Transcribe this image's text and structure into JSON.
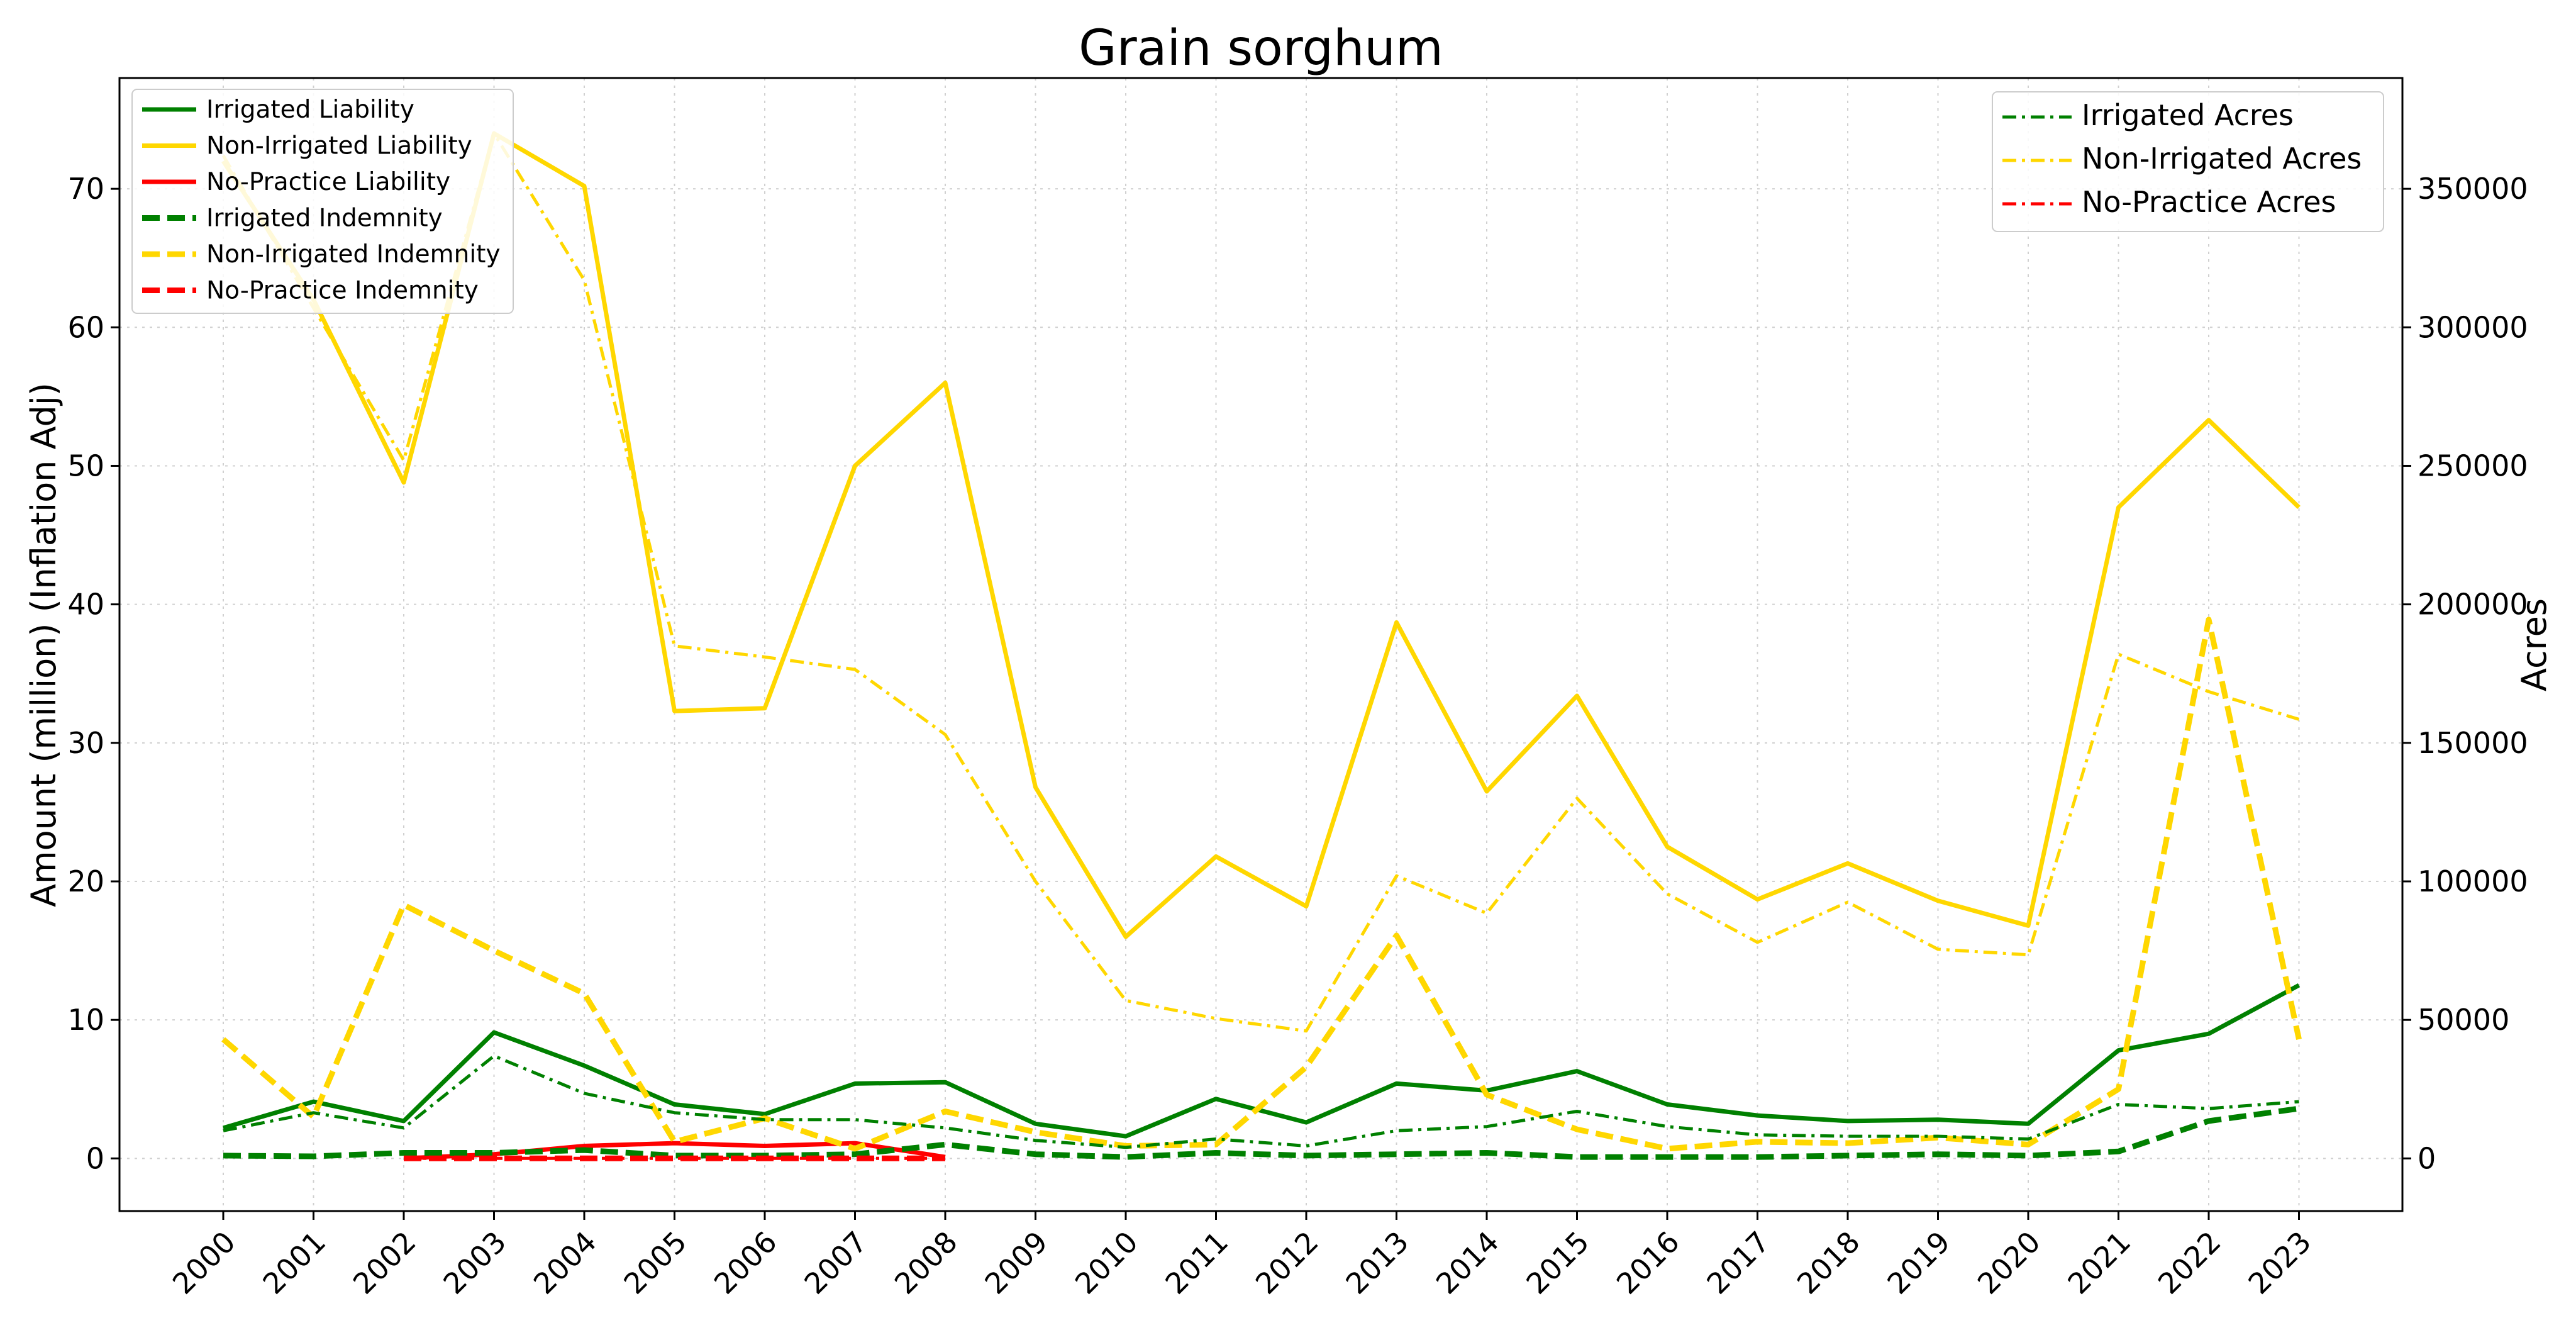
{
  "chart_data": {
    "type": "line",
    "title": "Grain sorghum",
    "ylabel": "Amount (million) (Inflation Adj)",
    "y2label": "Acres",
    "xlabel": "",
    "categories": [
      "2000",
      "2001",
      "2002",
      "2003",
      "2004",
      "2005",
      "2006",
      "2007",
      "2008",
      "2009",
      "2010",
      "2011",
      "2012",
      "2013",
      "2014",
      "2015",
      "2016",
      "2017",
      "2018",
      "2019",
      "2020",
      "2021",
      "2022",
      "2023"
    ],
    "ylim": [
      -3.8,
      78
    ],
    "y_ticks": [
      0,
      10,
      20,
      30,
      40,
      50,
      60,
      70
    ],
    "y2lim": [
      -19000,
      390000
    ],
    "y2_ticks": [
      0,
      50000,
      100000,
      150000,
      200000,
      250000,
      300000,
      350000
    ],
    "grid": true,
    "legend_left_placement": "upper-left",
    "legend_right_placement": "upper-right",
    "series": [
      {
        "name": "Irrigated Liability",
        "axis": "left",
        "style": "solid",
        "color": "#008000",
        "x": [
          "2000",
          "2001",
          "2002",
          "2003",
          "2004",
          "2005",
          "2006",
          "2007",
          "2008",
          "2009",
          "2010",
          "2011",
          "2012",
          "2013",
          "2014",
          "2015",
          "2016",
          "2017",
          "2018",
          "2019",
          "2020",
          "2021",
          "2022",
          "2023"
        ],
        "values": [
          2.2,
          4.1,
          2.7,
          9.1,
          6.7,
          3.9,
          3.2,
          5.4,
          5.5,
          2.5,
          1.6,
          4.3,
          2.6,
          5.4,
          4.9,
          6.3,
          3.9,
          3.1,
          2.7,
          2.8,
          2.5,
          7.8,
          9.0,
          12.5
        ]
      },
      {
        "name": "Non-Irrigated Liability",
        "axis": "left",
        "style": "solid",
        "color": "#FFD700",
        "x": [
          "2000",
          "2001",
          "2002",
          "2003",
          "2004",
          "2005",
          "2006",
          "2007",
          "2008",
          "2009",
          "2010",
          "2011",
          "2012",
          "2013",
          "2014",
          "2015",
          "2016",
          "2017",
          "2018",
          "2019",
          "2020",
          "2021",
          "2022",
          "2023"
        ],
        "values": [
          72.0,
          62.0,
          48.8,
          74.0,
          70.2,
          32.3,
          32.5,
          50.0,
          56.0,
          26.8,
          16.0,
          21.8,
          18.2,
          38.7,
          26.5,
          33.4,
          22.5,
          18.7,
          21.3,
          18.6,
          16.8,
          47.0,
          53.3,
          47.0
        ]
      },
      {
        "name": "No-Practice Liability",
        "axis": "left",
        "style": "solid",
        "color": "#FF0000",
        "x": [
          "2002",
          "2003",
          "2004",
          "2005",
          "2006",
          "2007",
          "2008"
        ],
        "values": [
          0.0,
          0.3,
          0.9,
          1.1,
          0.9,
          1.1,
          0.1
        ]
      },
      {
        "name": "Irrigated Indemnity",
        "axis": "left",
        "style": "dashed",
        "color": "#008000",
        "x": [
          "2000",
          "2001",
          "2002",
          "2003",
          "2004",
          "2005",
          "2006",
          "2007",
          "2008",
          "2009",
          "2010",
          "2011",
          "2012",
          "2013",
          "2014",
          "2015",
          "2016",
          "2017",
          "2018",
          "2019",
          "2020",
          "2021",
          "2022",
          "2023"
        ],
        "values": [
          0.2,
          0.15,
          0.4,
          0.4,
          0.6,
          0.2,
          0.2,
          0.3,
          1.0,
          0.3,
          0.1,
          0.4,
          0.2,
          0.3,
          0.4,
          0.1,
          0.1,
          0.1,
          0.2,
          0.3,
          0.2,
          0.5,
          2.7,
          3.6
        ]
      },
      {
        "name": "Non-Irrigated Indemnity",
        "axis": "left",
        "style": "dashed",
        "color": "#FFD700",
        "x": [
          "2000",
          "2001",
          "2002",
          "2003",
          "2004",
          "2005",
          "2006",
          "2007",
          "2008",
          "2009",
          "2010",
          "2011",
          "2012",
          "2013",
          "2014",
          "2015",
          "2016",
          "2017",
          "2018",
          "2019",
          "2020",
          "2021",
          "2022",
          "2023"
        ],
        "values": [
          8.6,
          3.0,
          18.3,
          15.0,
          11.9,
          1.2,
          2.9,
          0.7,
          3.4,
          1.9,
          0.9,
          1.0,
          6.6,
          16.1,
          4.6,
          2.1,
          0.7,
          1.2,
          1.1,
          1.5,
          1.0,
          5.0,
          38.9,
          8.6
        ]
      },
      {
        "name": "No-Practice Indemnity",
        "axis": "left",
        "style": "dashed",
        "color": "#FF0000",
        "x": [
          "2002",
          "2003",
          "2004",
          "2005",
          "2006",
          "2007",
          "2008"
        ],
        "values": [
          0.0,
          0.0,
          0.0,
          0.0,
          0.0,
          0.0,
          0.0
        ]
      },
      {
        "name": "Irrigated Acres",
        "axis": "right",
        "style": "dashdot",
        "color": "#008000",
        "x": [
          "2000",
          "2001",
          "2002",
          "2003",
          "2004",
          "2005",
          "2006",
          "2007",
          "2008",
          "2009",
          "2010",
          "2011",
          "2012",
          "2013",
          "2014",
          "2015",
          "2016",
          "2017",
          "2018",
          "2019",
          "2020",
          "2021",
          "2022",
          "2023"
        ],
        "values": [
          10000,
          16500,
          11000,
          37000,
          23500,
          16500,
          14000,
          14000,
          11000,
          6500,
          4000,
          7000,
          4500,
          10000,
          11500,
          17000,
          11500,
          8500,
          8000,
          8000,
          7000,
          19500,
          18000,
          20500
        ]
      },
      {
        "name": "Non-Irrigated Acres",
        "axis": "right",
        "style": "dashdot",
        "color": "#FFD700",
        "x": [
          "2000",
          "2001",
          "2002",
          "2003",
          "2004",
          "2005",
          "2006",
          "2007",
          "2008",
          "2009",
          "2010",
          "2011",
          "2012",
          "2013",
          "2014",
          "2015",
          "2016",
          "2017",
          "2018",
          "2019",
          "2020",
          "2021",
          "2022",
          "2023"
        ],
        "values": [
          362000,
          307000,
          252000,
          370000,
          317000,
          185000,
          181000,
          176500,
          153000,
          100000,
          57000,
          50500,
          46000,
          102000,
          88500,
          130000,
          95500,
          78000,
          92500,
          75500,
          73500,
          182000,
          168500,
          158500
        ]
      },
      {
        "name": "No-Practice Acres",
        "axis": "right",
        "style": "dashdot",
        "color": "#FF0000",
        "x": [
          "2002",
          "2003",
          "2004",
          "2005",
          "2006",
          "2007",
          "2008"
        ],
        "values": [
          0,
          0,
          0,
          0,
          0,
          0,
          0
        ]
      }
    ],
    "legend_left": [
      "Irrigated Liability",
      "Non-Irrigated Liability",
      "No-Practice Liability",
      "Irrigated Indemnity",
      "Non-Irrigated Indemnity",
      "No-Practice Indemnity"
    ],
    "legend_right": [
      "Irrigated Acres",
      "Non-Irrigated Acres",
      "No-Practice Acres"
    ]
  }
}
